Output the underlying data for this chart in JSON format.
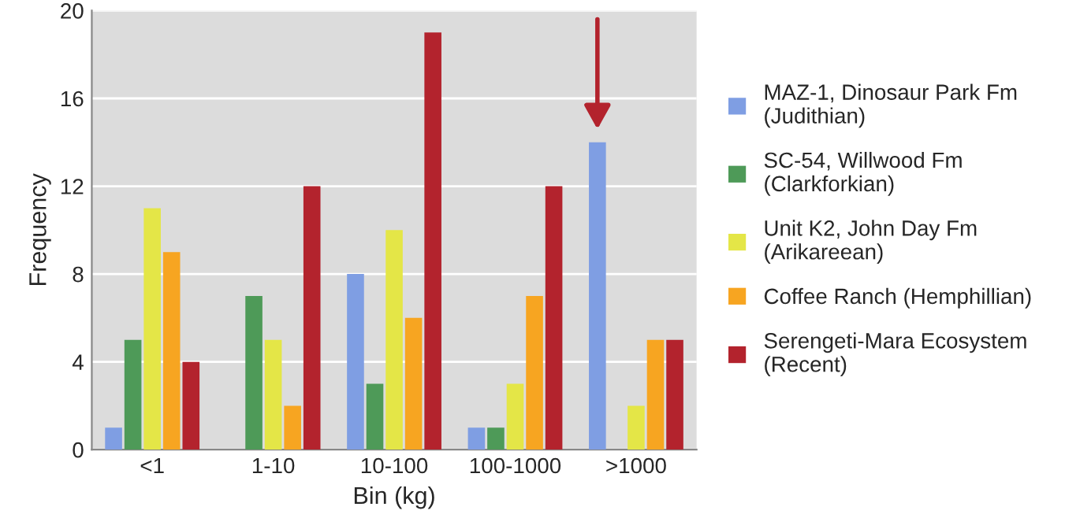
{
  "chart_data": {
    "type": "bar",
    "xlabel": "Bin (kg)",
    "ylabel": "Frequency",
    "categories": [
      "<1",
      "1-10",
      "10-100",
      "100-1000",
      ">1000"
    ],
    "series": [
      {
        "name": "MAZ-1, Dinosaur Park Fm\n(Judithian)",
        "color": "#7f9ee3",
        "values": [
          1,
          0,
          8,
          1,
          14
        ]
      },
      {
        "name": "SC-54, Willwood Fm\n(Clarkforkian)",
        "color": "#4e9a58",
        "values": [
          5,
          7,
          3,
          1,
          0
        ]
      },
      {
        "name": "Unit K2, John Day Fm\n(Arikareean)",
        "color": "#e4e647",
        "values": [
          11,
          5,
          10,
          3,
          2
        ]
      },
      {
        "name": "Coffee Ranch (Hemphillian)",
        "color": "#f7a521",
        "values": [
          9,
          2,
          6,
          7,
          5
        ]
      },
      {
        "name": "Serengeti-Mara Ecosystem\n(Recent)",
        "color": "#b3232d",
        "values": [
          4,
          12,
          19,
          12,
          5
        ]
      }
    ],
    "ylim": [
      0,
      20
    ],
    "yticks": [
      0,
      4,
      8,
      12,
      16,
      20
    ],
    "grid": "y",
    "legend": "right"
  }
}
